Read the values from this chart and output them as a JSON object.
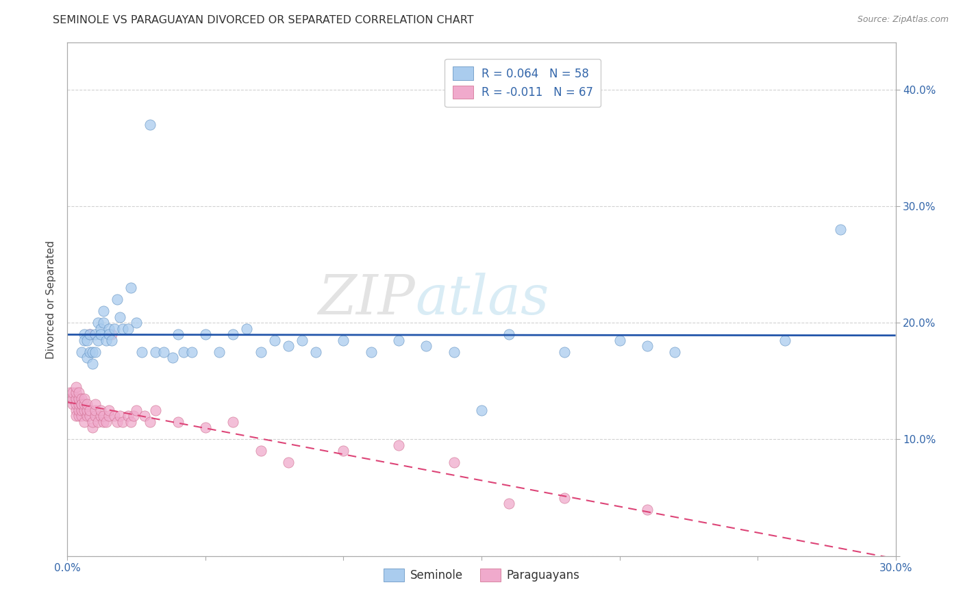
{
  "title": "SEMINOLE VS PARAGUAYAN DIVORCED OR SEPARATED CORRELATION CHART",
  "source": "Source: ZipAtlas.com",
  "xlim": [
    0.0,
    0.3
  ],
  "ylim": [
    0.0,
    0.44
  ],
  "ylabel": "Divorced or Separated",
  "watermark_zip": "ZIP",
  "watermark_atlas": "atlas",
  "background_color": "#ffffff",
  "grid_color": "#cccccc",
  "seminole_dot_color": "#aaccee",
  "seminole_edge_color": "#5588bb",
  "seminole_line_color": "#2255aa",
  "paraguayan_dot_color": "#f0aacc",
  "paraguayan_edge_color": "#cc6688",
  "paraguayan_line_color": "#dd4477",
  "seminole_R": 0.064,
  "paraguayan_R": -0.011,
  "seminole_N": 58,
  "paraguayan_N": 67,
  "seminole_x": [
    0.005,
    0.006,
    0.006,
    0.007,
    0.007,
    0.008,
    0.008,
    0.009,
    0.009,
    0.01,
    0.01,
    0.011,
    0.011,
    0.012,
    0.012,
    0.013,
    0.013,
    0.014,
    0.015,
    0.015,
    0.016,
    0.017,
    0.018,
    0.019,
    0.02,
    0.022,
    0.023,
    0.025,
    0.027,
    0.03,
    0.032,
    0.035,
    0.038,
    0.04,
    0.042,
    0.045,
    0.05,
    0.055,
    0.06,
    0.065,
    0.07,
    0.075,
    0.08,
    0.085,
    0.09,
    0.1,
    0.11,
    0.12,
    0.13,
    0.14,
    0.15,
    0.16,
    0.18,
    0.2,
    0.21,
    0.22,
    0.26,
    0.28
  ],
  "seminole_y": [
    0.175,
    0.19,
    0.185,
    0.17,
    0.185,
    0.175,
    0.19,
    0.175,
    0.165,
    0.175,
    0.19,
    0.185,
    0.2,
    0.195,
    0.19,
    0.2,
    0.21,
    0.185,
    0.195,
    0.19,
    0.185,
    0.195,
    0.22,
    0.205,
    0.195,
    0.195,
    0.23,
    0.2,
    0.175,
    0.37,
    0.175,
    0.175,
    0.17,
    0.19,
    0.175,
    0.175,
    0.19,
    0.175,
    0.19,
    0.195,
    0.175,
    0.185,
    0.18,
    0.185,
    0.175,
    0.185,
    0.175,
    0.185,
    0.18,
    0.175,
    0.125,
    0.19,
    0.175,
    0.185,
    0.18,
    0.175,
    0.185,
    0.28
  ],
  "paraguayan_x": [
    0.001,
    0.001,
    0.002,
    0.002,
    0.002,
    0.003,
    0.003,
    0.003,
    0.003,
    0.003,
    0.003,
    0.004,
    0.004,
    0.004,
    0.004,
    0.004,
    0.005,
    0.005,
    0.005,
    0.005,
    0.005,
    0.006,
    0.006,
    0.006,
    0.006,
    0.007,
    0.007,
    0.007,
    0.008,
    0.008,
    0.008,
    0.009,
    0.009,
    0.01,
    0.01,
    0.01,
    0.011,
    0.012,
    0.012,
    0.013,
    0.013,
    0.014,
    0.015,
    0.015,
    0.016,
    0.017,
    0.018,
    0.019,
    0.02,
    0.022,
    0.023,
    0.024,
    0.025,
    0.028,
    0.03,
    0.032,
    0.04,
    0.05,
    0.06,
    0.07,
    0.08,
    0.1,
    0.12,
    0.14,
    0.16,
    0.18,
    0.21
  ],
  "paraguayan_y": [
    0.135,
    0.14,
    0.13,
    0.135,
    0.14,
    0.125,
    0.13,
    0.135,
    0.14,
    0.12,
    0.145,
    0.12,
    0.125,
    0.13,
    0.135,
    0.14,
    0.12,
    0.125,
    0.13,
    0.135,
    0.13,
    0.115,
    0.125,
    0.13,
    0.135,
    0.12,
    0.125,
    0.13,
    0.12,
    0.125,
    0.19,
    0.11,
    0.115,
    0.12,
    0.125,
    0.13,
    0.115,
    0.12,
    0.125,
    0.115,
    0.12,
    0.115,
    0.12,
    0.125,
    0.19,
    0.12,
    0.115,
    0.12,
    0.115,
    0.12,
    0.115,
    0.12,
    0.125,
    0.12,
    0.115,
    0.125,
    0.115,
    0.11,
    0.115,
    0.09,
    0.08,
    0.09,
    0.095,
    0.08,
    0.045,
    0.05,
    0.04
  ]
}
